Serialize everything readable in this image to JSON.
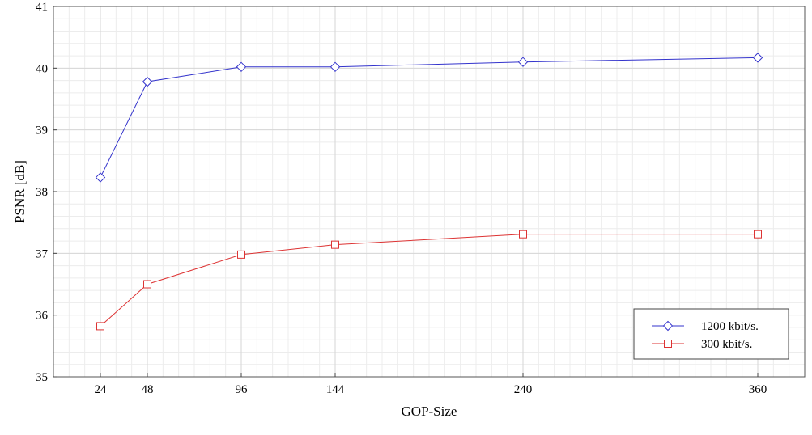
{
  "chart_data": {
    "type": "line",
    "xlabel": "GOP-Size",
    "ylabel": "PSNR [dB]",
    "x": [
      24,
      48,
      96,
      144,
      240,
      360
    ],
    "x_ticks": [
      "24",
      "48",
      "96",
      "144",
      "240",
      "360"
    ],
    "y_ticks": [
      "35",
      "36",
      "37",
      "38",
      "39",
      "40",
      "41"
    ],
    "xlim": [
      0,
      384
    ],
    "ylim": [
      35,
      41
    ],
    "grid": true,
    "legend_position": "bottom-right",
    "series": [
      {
        "name": "1200 kbit/s.",
        "values": [
          38.23,
          39.78,
          40.02,
          40.02,
          40.1,
          40.17
        ],
        "color": "#3333cc",
        "marker": "diamond"
      },
      {
        "name": "300 kbit/s.",
        "values": [
          35.82,
          36.5,
          36.98,
          37.14,
          37.31,
          37.31
        ],
        "color": "#dd3333",
        "marker": "square"
      }
    ]
  }
}
